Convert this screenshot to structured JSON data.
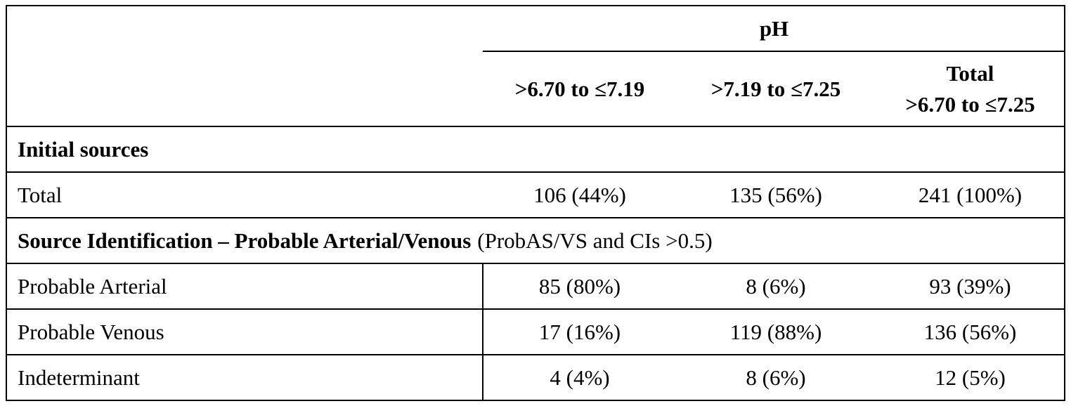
{
  "table": {
    "group_header": "pH",
    "columns": [
      ">6.70 to ≤7.19",
      ">7.19 to ≤7.25"
    ],
    "total_column": {
      "line1": "Total",
      "line2": ">6.70 to ≤7.25"
    },
    "section1": {
      "heading": "Initial sources",
      "rows": [
        [
          "Total",
          "106 (44%)",
          "135 (56%)",
          "241 (100%)"
        ]
      ]
    },
    "section2": {
      "heading": "Source Identification – Probable Arterial/Venous",
      "note": "(ProbAS/VS and CIs >0.5)",
      "rows": [
        [
          "Probable Arterial",
          "85 (80%)",
          "8 (6%)",
          "93 (39%)"
        ],
        [
          "Probable Venous",
          "17 (16%)",
          "119 (88%)",
          "136 (56%)"
        ],
        [
          "Indeterminant",
          "4 (4%)",
          "8 (6%)",
          "12 (5%)"
        ]
      ]
    }
  }
}
